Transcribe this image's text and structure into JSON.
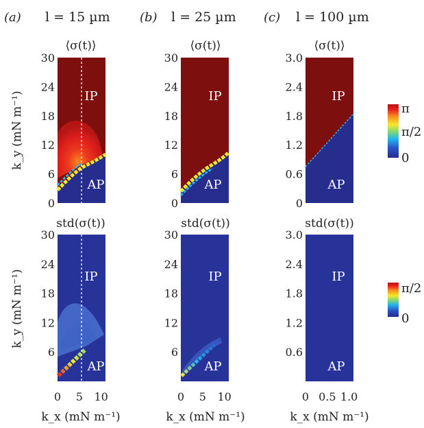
{
  "colors": {
    "ip": "#7d0f0f",
    "ap": "#262d8c",
    "std_bg": "#28339a",
    "dashed": "#ffffff",
    "colormap": [
      "#262d8c",
      "#2a52c8",
      "#22b6ea",
      "#8fd96a",
      "#f5ea2c",
      "#f7881f",
      "#e8211f",
      "#b51515"
    ]
  },
  "columns": [
    {
      "letter": "(a)",
      "l_label": "l = 15 µm"
    },
    {
      "letter": "(b)",
      "l_label": "l = 25 µm"
    },
    {
      "letter": "(c)",
      "l_label": "l = 100 µm"
    }
  ],
  "row_titles": [
    "⟨σ(t)⟩",
    "std(σ(t))"
  ],
  "y_axis_label": "k_y (mN m⁻¹)",
  "x_axis_label": "k_x (mN m⁻¹)",
  "region_labels": {
    "ip": "IP",
    "ap": "AP"
  },
  "colorbar_mean": {
    "ticks": [
      "π",
      "π/2",
      "0"
    ]
  },
  "colorbar_std": {
    "ticks": [
      "π/2",
      "0"
    ]
  },
  "chart_data": [
    {
      "type": "heatmap",
      "panel": "a-top",
      "title": "⟨σ(t)⟩",
      "xlabel": "k_x (mN m⁻¹)",
      "ylabel": "k_y (mN m⁻¹)",
      "xlim": [
        0,
        11
      ],
      "ylim": [
        0,
        30
      ],
      "xticks": [],
      "yticks": [
        0,
        6,
        12,
        18,
        24,
        30
      ],
      "ytick_labels": [
        "0",
        "6",
        "12",
        "18",
        "24",
        "30"
      ],
      "boundary": {
        "x": [
          0.8,
          2,
          3.5,
          5,
          6.5,
          8,
          9.5,
          11
        ],
        "y": [
          2.5,
          5,
          6.8,
          8,
          8.8,
          9.5,
          10.5,
          11.5
        ]
      },
      "transition_blob": {
        "center_x": 3.5,
        "peak_y": 17
      },
      "dashed_line_x": 5,
      "value_range": [
        0,
        3.1416
      ]
    },
    {
      "type": "heatmap",
      "panel": "b-top",
      "title": "⟨σ(t)⟩",
      "xlabel": "k_x (mN m⁻¹)",
      "ylabel": "k_y (mN m⁻¹)",
      "xlim": [
        0,
        11
      ],
      "ylim": [
        0,
        30
      ],
      "xticks": [],
      "yticks": [
        0,
        6,
        12,
        18,
        24,
        30
      ],
      "ytick_labels": [
        "0",
        "6",
        "12",
        "18",
        "24",
        "30"
      ],
      "boundary": {
        "x": [
          0.5,
          2,
          4,
          6,
          8,
          11
        ],
        "y": [
          2.2,
          4.5,
          6.5,
          8.0,
          9.5,
          11.0
        ]
      },
      "value_range": [
        0,
        3.1416
      ]
    },
    {
      "type": "heatmap",
      "panel": "c-top",
      "title": "⟨σ(t)⟩",
      "xlabel": "k_x (mN m⁻¹)",
      "ylabel": "k_y (mN m⁻¹)",
      "xlim": [
        0,
        1.1
      ],
      "ylim": [
        0,
        3.0
      ],
      "xticks": [],
      "yticks": [
        0,
        0.6,
        1.2,
        1.8,
        2.4,
        3.0
      ],
      "ytick_labels": [
        "0",
        "0.6",
        "1.2",
        "1.8",
        "2.4",
        "3.0"
      ],
      "boundary": {
        "x": [
          0,
          1.1
        ],
        "y": [
          0.75,
          1.85
        ]
      },
      "value_range": [
        0,
        3.1416
      ]
    },
    {
      "type": "heatmap",
      "panel": "a-bottom",
      "title": "std(σ(t))",
      "xlabel": "k_x (mN m⁻¹)",
      "ylabel": "k_y (mN m⁻¹)",
      "xlim": [
        0,
        11
      ],
      "ylim": [
        0,
        30
      ],
      "xticks": [
        0,
        5,
        10
      ],
      "xtick_labels": [
        "0",
        "5",
        "10"
      ],
      "yticks": [
        6,
        12,
        18,
        24,
        30
      ],
      "ytick_labels": [
        "6",
        "12",
        "18",
        "24",
        "30"
      ],
      "diagonal": {
        "x": [
          0.5,
          6
        ],
        "y": [
          1.5,
          7.5
        ]
      },
      "dashed_line_x": 5,
      "value_range": [
        0,
        1.5708
      ]
    },
    {
      "type": "heatmap",
      "panel": "b-bottom",
      "title": "std(σ(t))",
      "xlabel": "k_x (mN m⁻¹)",
      "ylabel": "k_y (mN m⁻¹)",
      "xlim": [
        0,
        11
      ],
      "ylim": [
        0,
        30
      ],
      "xticks": [
        0,
        5,
        10
      ],
      "xtick_labels": [
        "0",
        "5",
        "10"
      ],
      "yticks": [
        6,
        12,
        18,
        24,
        30
      ],
      "ytick_labels": [
        "6",
        "12",
        "18",
        "24",
        "30"
      ],
      "diagonal": {
        "x": [
          0.5,
          8
        ],
        "y": [
          1.5,
          9.5
        ]
      },
      "value_range": [
        0,
        1.5708
      ]
    },
    {
      "type": "heatmap",
      "panel": "c-bottom",
      "title": "std(σ(t))",
      "xlabel": "k_x (mN m⁻¹)",
      "ylabel": "k_y (mN m⁻¹)",
      "xlim": [
        0,
        1.1
      ],
      "ylim": [
        0,
        3.0
      ],
      "xticks": [
        0,
        0.5,
        1.0
      ],
      "xtick_labels": [
        "0",
        "0.5",
        "1.0"
      ],
      "yticks": [
        0.6,
        1.2,
        1.8,
        2.4,
        3.0
      ],
      "ytick_labels": [
        "0.6",
        "1.2",
        "1.8",
        "2.4",
        "3.0"
      ],
      "value_range": [
        0,
        1.5708
      ]
    }
  ]
}
